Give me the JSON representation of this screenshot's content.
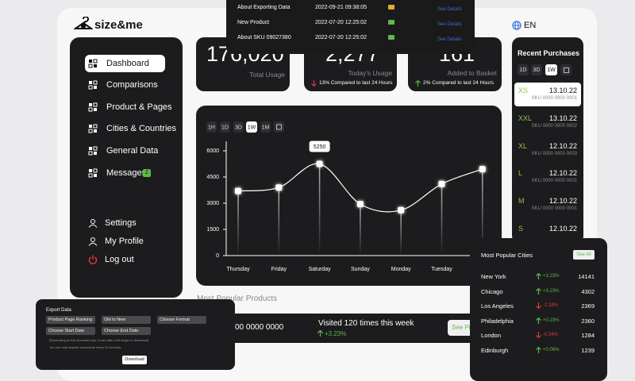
{
  "logo": "size&me",
  "language": "EN",
  "nav": {
    "main": [
      {
        "label": "Dashboard",
        "active": true
      },
      {
        "label": "Comparisons"
      },
      {
        "label": "Product & Pages"
      },
      {
        "label": "Cities & Countries"
      },
      {
        "label": "General Data"
      },
      {
        "label": "Messages",
        "badge": "2"
      }
    ],
    "bottom": [
      {
        "label": "Settings"
      },
      {
        "label": "My Profile"
      },
      {
        "label": "Log out"
      }
    ]
  },
  "notifications": [
    {
      "title": "About Exporting Data",
      "date": "2022-09-21 09:38:05",
      "action": "See Details",
      "color": "#e0b030"
    },
    {
      "title": "New Product",
      "date": "2022-07-20 12:25:02",
      "action": "See Details",
      "color": "#5fb84a"
    },
    {
      "title": "About SKU 09027380",
      "date": "2022-07-20 12:25:02",
      "action": "See Details",
      "color": "#5fb84a"
    }
  ],
  "stats": [
    {
      "value": "176,020",
      "label": "Total Usage"
    },
    {
      "value": "2,277",
      "label": "Today's Usage",
      "change": "13% Compared to last 24 Hours",
      "direction": "down"
    },
    {
      "value": "161",
      "label": "Added to Basket",
      "change": "2% Compared to last 24 Hours",
      "direction": "up"
    }
  ],
  "usage_chart": {
    "type": "line",
    "ranges": [
      {
        "label": "1H"
      },
      {
        "label": "1D"
      },
      {
        "label": "3D"
      },
      {
        "label": "1W",
        "active": true
      },
      {
        "label": "1M"
      }
    ],
    "categories": [
      "Thursday",
      "Friday",
      "Saturday",
      "Sunday",
      "Monday",
      "Tuesday",
      null
    ],
    "values": [
      3700,
      3900,
      5250,
      2950,
      2600,
      4100,
      4950
    ],
    "ylim": [
      0,
      6000
    ],
    "yticks": [
      0,
      1500,
      3000,
      4500,
      6000
    ]
  },
  "recent_purchases": {
    "title": "Recent Purchases",
    "ranges": [
      {
        "label": "1D"
      },
      {
        "label": "3D"
      },
      {
        "label": "1W",
        "active": true
      }
    ],
    "items": [
      {
        "size": "XS",
        "date": "13.10.22",
        "sku": "SKU 0000 0000 0001",
        "active": true
      },
      {
        "size": "XXL",
        "date": "13.10.22",
        "sku": "SKU 0000 0000 0002"
      },
      {
        "size": "XL",
        "date": "12.10.22",
        "sku": "SKU 0000 0000 0003"
      },
      {
        "size": "L",
        "date": "12.10.22",
        "sku": "SKU 0000 0000 0001"
      },
      {
        "size": "M",
        "date": "12.10.22",
        "sku": "SKU 0000 0000 0001"
      },
      {
        "size": "S",
        "date": "12.10.22"
      }
    ]
  },
  "popular_cities": {
    "title": "Most Popular Cities",
    "action": "See All",
    "rows": [
      {
        "city": "New York",
        "change": "+3.23%",
        "direction": "up",
        "value": 14141
      },
      {
        "city": "Chicago",
        "change": "+3.23%",
        "direction": "up",
        "value": 4302
      },
      {
        "city": "Los Angeles",
        "change": "-2.28%",
        "direction": "down",
        "value": 2369
      },
      {
        "city": "Philadelphia",
        "change": "+0.23%",
        "direction": "up",
        "value": 2360
      },
      {
        "city": "London",
        "change": "-0.34%",
        "direction": "down",
        "value": 1284
      },
      {
        "city": "Edinburgh",
        "change": "+0.06%",
        "direction": "up",
        "value": 1239
      }
    ]
  },
  "popular_products": {
    "title": "Most Popular Products",
    "sku": "00 0000 0000",
    "visits": "Visited 120 times this week",
    "change": "+3.23%",
    "action": "See Pr"
  },
  "export": {
    "title": "Export Data",
    "fields": [
      {
        "label": "Product Page Ranking"
      },
      {
        "label": "Old to New"
      },
      {
        "label": "Choose Format"
      },
      {
        "label": "Choose Start Date"
      },
      {
        "label": "Choose End Date"
      }
    ],
    "notes": [
      "(Depending on the document size, it can take a bit longer to download)",
      "You can only request documents every 10 seconds"
    ],
    "action": "Download"
  }
}
